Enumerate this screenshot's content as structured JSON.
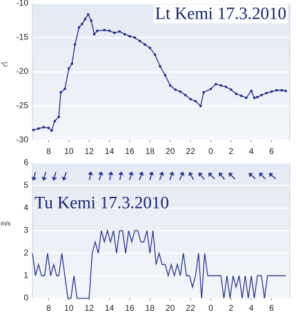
{
  "chart_data": [
    {
      "type": "line",
      "title": "Lt Kemi 17.3.2010",
      "y_label": "°C",
      "color": "#1e2a8a",
      "markers": true,
      "grid": true,
      "xlim": [
        6.4,
        31.8
      ],
      "ylim": [
        -30,
        -10
      ],
      "xticks": [
        8,
        10,
        12,
        14,
        16,
        18,
        20,
        22,
        {
          "value": 24,
          "label": "0"
        },
        {
          "value": 26,
          "label": "2"
        },
        {
          "value": 28,
          "label": "4"
        },
        {
          "value": 30,
          "label": "6"
        }
      ],
      "yticks": [
        -10,
        -15,
        -20,
        -25,
        -30
      ],
      "x": [
        6.5,
        7,
        7.5,
        8,
        8.3,
        8.6,
        9,
        9.2,
        9.6,
        10,
        10.3,
        10.6,
        11,
        11.3,
        11.6,
        11.9,
        12.2,
        12.5,
        12.8,
        13.5,
        14,
        14.5,
        15,
        15.5,
        16,
        16.5,
        17,
        17.5,
        18,
        18.5,
        19,
        19.5,
        20,
        20.5,
        21,
        21.5,
        22,
        22.5,
        23,
        23.3,
        24,
        24.5,
        25,
        25.5,
        26,
        26.5,
        27,
        27.5,
        28,
        28.3,
        28.6,
        29,
        29.5,
        30,
        30.5,
        31,
        31.4
      ],
      "values": [
        -28.5,
        -28.3,
        -28.1,
        -28.2,
        -28.6,
        -27.2,
        -26.6,
        -23,
        -22.5,
        -19.5,
        -18.8,
        -16,
        -13.5,
        -13,
        -12.3,
        -11.6,
        -12.5,
        -14.5,
        -14,
        -13.9,
        -14,
        -14.3,
        -14.1,
        -14.5,
        -14.8,
        -15,
        -15.5,
        -16,
        -16.5,
        -17.5,
        -19.2,
        -20.5,
        -22,
        -22.6,
        -22.9,
        -23.4,
        -24,
        -24.3,
        -25,
        -23,
        -22.5,
        -21.8,
        -22,
        -22.2,
        -22.6,
        -23.2,
        -23.5,
        -23.8,
        -22.8,
        -23.8,
        -23.7,
        -23.4,
        -23.1,
        -22.9,
        -22.7,
        -22.7,
        -22.8
      ]
    },
    {
      "type": "line",
      "title": "Tu Kemi 17.3.2010",
      "y_label": "m/s",
      "color": "#2a3590",
      "markers": false,
      "grid": true,
      "xlim": [
        6.4,
        31.8
      ],
      "ylim": [
        0,
        6
      ],
      "xticks": [
        8,
        10,
        12,
        14,
        16,
        18,
        20,
        22,
        {
          "value": 24,
          "label": "0"
        },
        {
          "value": 26,
          "label": "2"
        },
        {
          "value": 28,
          "label": "4"
        },
        {
          "value": 30,
          "label": "6"
        }
      ],
      "yticks": [
        0,
        1,
        2,
        3,
        4,
        5,
        6
      ],
      "x": [
        6.4,
        6.7,
        7,
        7.3,
        7.6,
        7.9,
        8.2,
        8.5,
        8.8,
        9,
        9.3,
        9.6,
        9.9,
        10.2,
        10.5,
        10.8,
        11,
        11.5,
        12,
        12.3,
        12.6,
        12.9,
        13.2,
        13.5,
        13.8,
        14.1,
        14.4,
        14.7,
        15,
        15.3,
        15.6,
        15.9,
        16.2,
        16.5,
        16.8,
        17.1,
        17.4,
        17.7,
        18,
        18.3,
        18.6,
        18.9,
        19.2,
        19.5,
        19.8,
        20.1,
        20.4,
        20.7,
        21,
        21.3,
        21.6,
        21.9,
        22.2,
        22.5,
        22.8,
        23.1,
        23.4,
        23.7,
        24,
        24.5,
        25,
        25.3,
        25.6,
        25.9,
        26.2,
        26.5,
        26.8,
        27.1,
        27.4,
        27.7,
        28,
        28.3,
        28.6,
        29,
        29.3,
        29.6,
        30,
        30.5,
        31,
        31.4
      ],
      "values": [
        2,
        1,
        1.5,
        1,
        1,
        2,
        1,
        1.5,
        1,
        1,
        2,
        1,
        0,
        0,
        1,
        0,
        0,
        0,
        0,
        2,
        2.5,
        2,
        3,
        2.5,
        3,
        2.5,
        3,
        2,
        3,
        3,
        2,
        3,
        2.5,
        3,
        3,
        2.5,
        2.5,
        3,
        2,
        3,
        1.5,
        2,
        1.5,
        1.5,
        1,
        1.5,
        1,
        1.5,
        1,
        2,
        1,
        1,
        0.5,
        1,
        2,
        0,
        2,
        1,
        1,
        1,
        1,
        0,
        1,
        0,
        1,
        0.5,
        1,
        0,
        1,
        0,
        1,
        0,
        1,
        1,
        0,
        1,
        1,
        1,
        1,
        1
      ],
      "directions": {
        "x": [
          6.6,
          7.6,
          8.6,
          9.6,
          12.1,
          13.1,
          14.1,
          15.1,
          16.1,
          17.1,
          18.1,
          19.1,
          20.1,
          21.1,
          22.1,
          23.1,
          24.1,
          25.1,
          26.1,
          28.1,
          29.1,
          30.1
        ],
        "values": [
          195,
          195,
          195,
          200,
          10,
          15,
          10,
          10,
          15,
          20,
          15,
          20,
          20,
          25,
          330,
          320,
          315,
          320,
          315,
          310,
          315,
          310
        ]
      }
    }
  ]
}
